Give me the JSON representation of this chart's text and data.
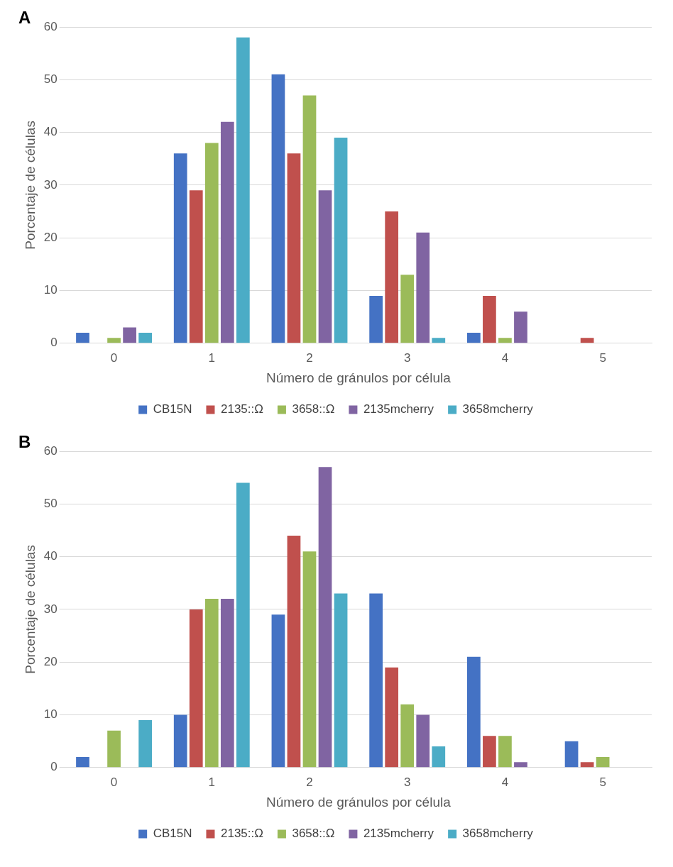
{
  "chart_data": [
    {
      "type": "bar",
      "annotations": [
        "A"
      ],
      "xlabel": "Número de gránulos por célula",
      "ylabel": "Porcentaje de células",
      "categories": [
        "0",
        "1",
        "2",
        "3",
        "4",
        "5"
      ],
      "ylim": [
        0,
        60
      ],
      "yticks": [
        0,
        10,
        20,
        30,
        40,
        50,
        60
      ],
      "grid": "y",
      "legend": "bottom",
      "series": [
        {
          "name": "CB15N",
          "color": "#4472c4",
          "values": [
            2,
            36,
            51,
            9,
            2,
            0
          ]
        },
        {
          "name": "2135::Ω",
          "color": "#c0504d",
          "values": [
            0,
            29,
            36,
            25,
            9,
            1
          ]
        },
        {
          "name": "3658::Ω",
          "color": "#9bbb59",
          "values": [
            1,
            38,
            47,
            13,
            1,
            0
          ]
        },
        {
          "name": "2135mcherry",
          "color": "#8064a2",
          "values": [
            3,
            42,
            29,
            21,
            6,
            0
          ]
        },
        {
          "name": "3658mcherry",
          "color": "#4bacc6",
          "values": [
            2,
            58,
            39,
            1,
            0,
            0
          ]
        }
      ]
    },
    {
      "type": "bar",
      "annotations": [
        "B"
      ],
      "xlabel": "Número de gránulos por célula",
      "ylabel": "Porcentaje de células",
      "categories": [
        "0",
        "1",
        "2",
        "3",
        "4",
        "5"
      ],
      "ylim": [
        0,
        60
      ],
      "yticks": [
        0,
        10,
        20,
        30,
        40,
        50,
        60
      ],
      "grid": "y",
      "legend": "bottom",
      "series": [
        {
          "name": "CB15N",
          "color": "#4472c4",
          "values": [
            2,
            10,
            29,
            33,
            21,
            5
          ]
        },
        {
          "name": "2135::Ω",
          "color": "#c0504d",
          "values": [
            0,
            30,
            44,
            19,
            6,
            1
          ]
        },
        {
          "name": "3658::Ω",
          "color": "#9bbb59",
          "values": [
            7,
            32,
            41,
            12,
            6,
            2
          ]
        },
        {
          "name": "2135mcherry",
          "color": "#8064a2",
          "values": [
            0,
            32,
            57,
            10,
            1,
            0
          ]
        },
        {
          "name": "3658mcherry",
          "color": "#4bacc6",
          "values": [
            9,
            54,
            33,
            4,
            0,
            0
          ]
        }
      ]
    }
  ]
}
